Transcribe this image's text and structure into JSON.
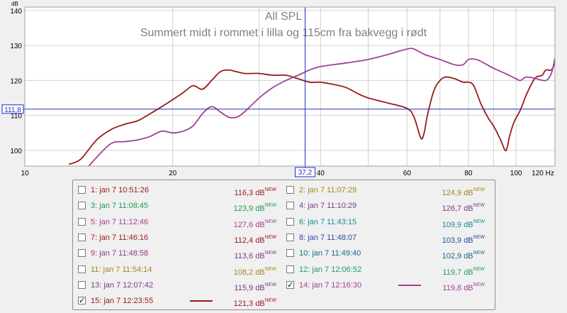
{
  "chart_data": {
    "type": "line",
    "title": "All SPL",
    "subtitle": "Summert midt i rommet i lilla og 115cm fra bakvegg i rødt",
    "ylabel": "dB",
    "xunit": "Hz",
    "xscale": "log",
    "xlim": [
      10,
      120
    ],
    "ylim": [
      95.5,
      141
    ],
    "x_ticks": [
      10,
      20,
      30,
      40,
      50,
      60,
      70,
      80,
      90,
      100,
      120
    ],
    "x_tick_labels": [
      "10",
      "20",
      "",
      "40",
      "",
      "60",
      "",
      "80",
      "",
      "100",
      "120 Hz"
    ],
    "y_ticks": [
      100,
      110,
      120,
      130,
      140
    ],
    "y_tick_labels": [
      "100",
      "110",
      "120",
      "130",
      "140"
    ],
    "grid": true,
    "cursor": {
      "x": 37.2,
      "y": 111.8,
      "x_label": "37,2",
      "y_label": "111,8"
    },
    "series": [
      {
        "color": "#9b1a1a",
        "x": [
          12.3,
          13,
          14,
          15,
          16,
          17,
          18,
          19,
          20,
          21,
          22,
          23,
          24,
          25,
          26,
          27,
          28,
          29,
          30,
          32,
          34,
          36,
          38,
          40,
          42,
          45,
          48,
          50,
          55,
          60,
          62,
          64,
          65,
          66,
          68,
          70,
          72,
          75,
          78,
          80,
          82,
          85,
          88,
          90,
          93,
          95,
          96,
          97,
          99,
          102,
          105,
          108,
          110,
          113,
          115,
          118,
          120
        ],
        "y": [
          96,
          97.5,
          103,
          106,
          107.5,
          108.5,
          110.5,
          112.5,
          114.5,
          116.5,
          118.5,
          117.5,
          120,
          122.5,
          123,
          122.5,
          122,
          122,
          122,
          121.5,
          121.5,
          120.5,
          119.5,
          119.5,
          119,
          118,
          116,
          115,
          113.5,
          112,
          109.5,
          103.5,
          105,
          110,
          117,
          120,
          121,
          120.5,
          119.5,
          119.5,
          118.5,
          113,
          109,
          107,
          103,
          100,
          101,
          104,
          108,
          111.5,
          116,
          119.5,
          121,
          121.5,
          123,
          123,
          125
        ]
      },
      {
        "color": "#a0409a",
        "x": [
          13.5,
          14,
          15,
          16,
          17,
          18,
          19,
          20,
          21,
          22,
          23,
          24,
          25,
          26,
          27,
          28,
          30,
          32,
          34,
          36,
          38,
          40,
          45,
          50,
          55,
          60,
          62,
          65,
          70,
          75,
          78,
          80,
          83,
          86,
          90,
          95,
          100,
          102,
          105,
          110,
          115,
          118,
          120
        ],
        "y": [
          95.5,
          98,
          102,
          102.5,
          103,
          104,
          105.5,
          105,
          105.5,
          107,
          110.5,
          112.5,
          111,
          109.5,
          109.5,
          111,
          115,
          118,
          120,
          121.5,
          123,
          124,
          125,
          126,
          127.5,
          129,
          129,
          127.5,
          126,
          124.5,
          124.5,
          126,
          126,
          125,
          123.5,
          122,
          120.5,
          120,
          121,
          120.5,
          120,
          122,
          126.5
        ]
      }
    ]
  },
  "legend": {
    "rows": [
      [
        {
          "label": "1: jan 7 10:51:26",
          "value": "116,3 dB",
          "badge": "NEW",
          "color": "#9b1a1a",
          "checked": false
        },
        {
          "label": "2: jan 7 11:07:29",
          "value": "124,9 dB",
          "badge": "NEW",
          "color": "#a8841c",
          "checked": false
        }
      ],
      [
        {
          "label": "3: jan 7 11:08:45",
          "value": "123,9 dB",
          "badge": "NEW",
          "color": "#1f9a55",
          "checked": false
        },
        {
          "label": "4: jan 7 11:10:29",
          "value": "126,7 dB",
          "badge": "NEW",
          "color": "#7a3a8a",
          "checked": false
        }
      ],
      [
        {
          "label": "5: jan 7 11:12:46",
          "value": "127,6 dB",
          "badge": "NEW",
          "color": "#a0409a",
          "checked": false
        },
        {
          "label": "6: jan 7 11:43:15",
          "value": "109,9 dB",
          "badge": "NEW",
          "color": "#1a8a8a",
          "checked": false
        }
      ],
      [
        {
          "label": "7: jan 7 11:46:16",
          "value": "112,4 dB",
          "badge": "NEW",
          "color": "#9b1a1a",
          "checked": false
        },
        {
          "label": "8: jan 7 11:48:07",
          "value": "103,9 dB",
          "badge": "NEW",
          "color": "#2a4aa0",
          "checked": false
        }
      ],
      [
        {
          "label": "9: jan 7 11:48:58",
          "value": "113,6 dB",
          "badge": "NEW",
          "color": "#8a3a8a",
          "checked": false
        },
        {
          "label": "10: jan 7 11:49:40",
          "value": "102,9 dB",
          "badge": "NEW",
          "color": "#1a6a8a",
          "checked": false
        }
      ],
      [
        {
          "label": "11: jan 7 11:54:14",
          "value": "108,2 dB",
          "badge": "NEW",
          "color": "#a8841c",
          "checked": false
        },
        {
          "label": "12: jan 7 12:06:52",
          "value": "119,7 dB",
          "badge": "NEW",
          "color": "#1f9a70",
          "checked": false
        }
      ],
      [
        {
          "label": "13: jan 7 12:07:42",
          "value": "115,9 dB",
          "badge": "NEW",
          "color": "#7a3a8a",
          "checked": false
        },
        {
          "label": "14: jan 7 12:16:30",
          "value": "119,8 dB",
          "badge": "NEW",
          "color": "#a0409a",
          "checked": true
        }
      ],
      [
        {
          "label": "15: jan 7 12:23:55",
          "value": "121,3 dB",
          "badge": "NEW",
          "color": "#9b1a1a",
          "checked": true
        }
      ]
    ]
  }
}
